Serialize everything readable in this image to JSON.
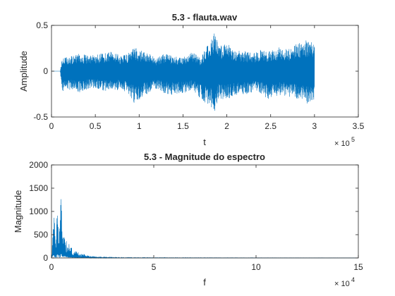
{
  "chart_data": [
    {
      "type": "line",
      "title": "5.3 - flauta.wav",
      "xlabel": "t",
      "ylabel": "Amplitude",
      "xlim": [
        0,
        350000
      ],
      "ylim": [
        -0.5,
        0.5
      ],
      "x_ticks": [
        0,
        50000,
        100000,
        150000,
        200000,
        250000,
        300000,
        350000
      ],
      "x_tick_labels": [
        "0",
        "0.5",
        "1",
        "1.5",
        "2",
        "2.5",
        "3",
        "3.5"
      ],
      "x_exponent_label": "× 10",
      "x_exponent": "5",
      "y_ticks": [
        -0.5,
        0,
        0.5
      ],
      "y_tick_labels": [
        "-0.5",
        "0",
        "0.5"
      ],
      "line_color": "#0072bd",
      "grid": false,
      "series": [
        {
          "x": [
            0,
            10000,
            12000,
            20000,
            30000,
            40000,
            50000,
            60000,
            70000,
            80000,
            90000,
            95000,
            100000,
            110000,
            120000,
            130000,
            140000,
            150000,
            160000,
            170000,
            180000,
            183000,
            187000,
            190000,
            200000,
            210000,
            220000,
            230000,
            240000,
            250000,
            260000,
            270000,
            280000,
            290000,
            297000,
            300000
          ],
          "y_upper": [
            0,
            0,
            0.14,
            0.16,
            0.2,
            0.18,
            0.18,
            0.2,
            0.22,
            0.16,
            0.22,
            0.26,
            0.24,
            0.2,
            0.14,
            0.2,
            0.16,
            0.15,
            0.22,
            0.14,
            0.32,
            0.37,
            0.5,
            0.28,
            0.3,
            0.24,
            0.22,
            0.2,
            0.24,
            0.22,
            0.26,
            0.24,
            0.3,
            0.34,
            0.32,
            0.3
          ],
          "y_lower": [
            0,
            0,
            -0.22,
            -0.2,
            -0.24,
            -0.2,
            -0.18,
            -0.22,
            -0.22,
            -0.2,
            -0.3,
            -0.36,
            -0.32,
            -0.24,
            -0.2,
            -0.25,
            -0.26,
            -0.24,
            -0.22,
            -0.3,
            -0.38,
            -0.4,
            -0.46,
            -0.3,
            -0.32,
            -0.28,
            -0.26,
            -0.24,
            -0.26,
            -0.32,
            -0.26,
            -0.28,
            -0.3,
            -0.36,
            -0.34,
            -0.3
          ]
        }
      ]
    },
    {
      "type": "line",
      "title": "5.3 - Magnitude do espectro",
      "xlabel": "f",
      "ylabel": "Magnitude",
      "xlim": [
        0,
        150000
      ],
      "ylim": [
        0,
        2000
      ],
      "x_ticks": [
        0,
        50000,
        100000,
        150000
      ],
      "x_tick_labels": [
        "0",
        "5",
        "10",
        "15"
      ],
      "x_exponent_label": "× 10",
      "x_exponent": "4",
      "y_ticks": [
        0,
        500,
        1000,
        1500,
        2000
      ],
      "y_tick_labels": [
        "0",
        "500",
        "1000",
        "1500",
        "2000"
      ],
      "line_color": "#0072bd",
      "grid": false,
      "series": [
        {
          "x": [
            0,
            1000,
            2000,
            3000,
            4000,
            4500,
            5000,
            5500,
            6000,
            7000,
            8000,
            9000,
            10000,
            12000,
            14000,
            16000,
            18000,
            20000,
            25000,
            30000,
            40000,
            60000,
            80000,
            100000,
            120000,
            150000
          ],
          "y": [
            0,
            1000,
            600,
            1300,
            700,
            1780,
            1250,
            900,
            700,
            450,
            350,
            280,
            220,
            150,
            110,
            80,
            60,
            40,
            25,
            15,
            10,
            8,
            6,
            5,
            4,
            3
          ]
        }
      ]
    }
  ]
}
